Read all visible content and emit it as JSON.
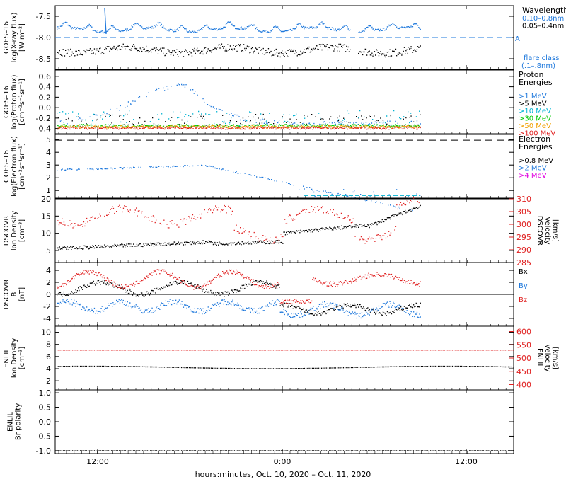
{
  "colors": {
    "blue": "#1e78dc",
    "black": "#000000",
    "cyan": "#00b4d2",
    "green": "#00c800",
    "orange": "#f0a000",
    "red": "#e02020",
    "magenta": "#e000e0"
  },
  "xaxis": {
    "label": "hours:minutes, Oct. 10, 2020 – Oct. 11, 2020",
    "ticks": [
      "12:00",
      "0:00",
      "12:00"
    ]
  },
  "chart_data": [
    {
      "type": "scatter",
      "id": "xray",
      "ylabel": [
        "GOES–16",
        "log(X-ray flux)",
        "[W m⁻²]"
      ],
      "yticks": [
        "-7.5",
        "-8.0",
        "-8.5"
      ],
      "ylim": [
        -8.75,
        -7.25
      ],
      "legend": {
        "title": "Wavelength",
        "entries": [
          {
            "name": "0.10–0.8nm",
            "color": "blue"
          },
          {
            "name": "0.05–0.4nm",
            "color": "black"
          }
        ],
        "flare_class": "flare class",
        "flare_band": "(.1–.8nm)",
        "class_label": "A"
      },
      "series": [
        {
          "name": "0.10–0.8nm",
          "color": "blue",
          "base": -7.83
        },
        {
          "name": "0.05–0.4nm",
          "color": "black",
          "base": -8.28
        }
      ]
    },
    {
      "type": "scatter",
      "id": "proton",
      "ylabel": [
        "GOES–16",
        "log(Proton flux)",
        "[cm⁻²s⁻¹sr⁻¹]"
      ],
      "yticks": [
        "0.6",
        "0.4",
        "0.2",
        "0.0",
        "-0.2",
        "-0.4"
      ],
      "ylim": [
        -0.5,
        0.72
      ],
      "legend": {
        "title": "Proton Energies",
        "entries": [
          {
            "name": ">1 MeV",
            "color": "blue"
          },
          {
            "name": ">5 MeV",
            "color": "black"
          },
          {
            "name": ">10 MeV",
            "color": "cyan"
          },
          {
            "name": ">30 MeV",
            "color": "green"
          },
          {
            "name": ">50 MeV",
            "color": "orange"
          },
          {
            "name": ">100 MeV",
            "color": "red"
          }
        ]
      }
    },
    {
      "type": "scatter",
      "id": "electron",
      "ylabel": [
        "GOES–16",
        "log(Electron flux)",
        "[cm⁻²s⁻¹sr⁻¹]"
      ],
      "yticks": [
        "5",
        "4",
        "3",
        "2",
        "1"
      ],
      "ylim": [
        0.4,
        5.4
      ],
      "legend": {
        "title": "Electron Energies",
        "entries": [
          {
            "name": ">0.8 MeV",
            "color": "black"
          },
          {
            "name": ">2 MeV",
            "color": "blue"
          },
          {
            "name": ">4 MeV",
            "color": "magenta"
          }
        ]
      }
    },
    {
      "type": "scatter",
      "id": "dscovr_density",
      "ylabel": [
        "DSCOVR",
        "Ion Density",
        "[cm⁻³]"
      ],
      "yticks": [
        "20",
        "15",
        "10",
        "5"
      ],
      "ylim": [
        1.5,
        20
      ],
      "rlabel": [
        "DSCOVR",
        "Velocity",
        "[km/s]"
      ],
      "rticks": [
        "310",
        "305",
        "300",
        "295",
        "290",
        "285"
      ],
      "rlim": [
        285,
        310
      ]
    },
    {
      "type": "scatter",
      "id": "dscovr_b",
      "ylabel": [
        "DSCOVR",
        "B",
        "[nT]"
      ],
      "yticks": [
        "4",
        "2",
        "0",
        "-2",
        "-4"
      ],
      "ylim": [
        -5.3,
        5.3
      ],
      "legend": {
        "entries": [
          {
            "name": "Bx",
            "color": "black"
          },
          {
            "name": "By",
            "color": "blue"
          },
          {
            "name": "Bz",
            "color": "red"
          }
        ]
      }
    },
    {
      "type": "scatter",
      "id": "enlil_density",
      "ylabel": [
        "ENLIL",
        "Ion Density",
        "[cm⁻³]"
      ],
      "yticks": [
        "10",
        "8",
        "6",
        "4",
        "2"
      ],
      "ylim": [
        0.5,
        11
      ],
      "rlabel": [
        "ENLIL",
        "Velocity",
        "[km/s]"
      ],
      "rticks": [
        "600",
        "550",
        "500",
        "450",
        "400"
      ],
      "rlim": [
        380,
        620
      ],
      "series": [
        {
          "name": "velocity",
          "color": "red",
          "value": 530
        },
        {
          "name": "density",
          "color": "black",
          "value": 4.2
        }
      ]
    },
    {
      "type": "scatter",
      "id": "enlil_polarity",
      "ylabel": [
        "ENLIL",
        "Br polarity"
      ],
      "yticks": [
        "1.0",
        "0.5",
        "0.0",
        "-0.5",
        "-1.0"
      ],
      "ylim": [
        -1.1,
        1.1
      ],
      "series": [
        {
          "name": "polarity",
          "color": "black",
          "value": -1.0
        }
      ]
    }
  ]
}
